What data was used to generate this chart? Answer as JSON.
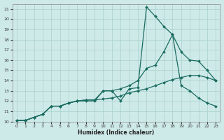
{
  "xlabel": "Humidex (Indice chaleur)",
  "ylabel": "",
  "bg_color": "#ceeae8",
  "grid_color": "#aed4d0",
  "line_color": "#1a6b60",
  "xlim": [
    -0.5,
    23.5
  ],
  "ylim": [
    10,
    21.5
  ],
  "xticks": [
    0,
    1,
    2,
    3,
    4,
    5,
    6,
    7,
    8,
    9,
    10,
    11,
    12,
    13,
    14,
    15,
    16,
    17,
    18,
    19,
    20,
    21,
    22,
    23
  ],
  "yticks": [
    10,
    11,
    12,
    13,
    14,
    15,
    16,
    17,
    18,
    19,
    20,
    21
  ],
  "line1_x": [
    0,
    1,
    2,
    3,
    4,
    5,
    6,
    7,
    8,
    9,
    10,
    11,
    12,
    13,
    14,
    15,
    16,
    17,
    18,
    19,
    20,
    21,
    22,
    23
  ],
  "line1_y": [
    10.1,
    10.1,
    10.4,
    10.7,
    11.5,
    11.5,
    11.8,
    12.0,
    12.1,
    12.1,
    12.2,
    12.3,
    12.5,
    12.8,
    13.0,
    13.2,
    13.5,
    13.8,
    14.1,
    14.3,
    14.5,
    14.5,
    14.3,
    14.0
  ],
  "line2_x": [
    0,
    1,
    2,
    3,
    4,
    5,
    6,
    7,
    8,
    9,
    10,
    11,
    12,
    13,
    14,
    15,
    16,
    17,
    18,
    19,
    20,
    21,
    22,
    23
  ],
  "line2_y": [
    10.1,
    10.1,
    10.4,
    10.7,
    11.5,
    11.5,
    11.8,
    12.0,
    12.1,
    12.1,
    13.0,
    13.0,
    13.2,
    13.5,
    14.0,
    15.2,
    15.5,
    16.8,
    18.5,
    16.8,
    16.0,
    15.9,
    15.0,
    14.0
  ],
  "line3_x": [
    0,
    1,
    2,
    3,
    4,
    5,
    6,
    7,
    8,
    9,
    10,
    11,
    12,
    13,
    14,
    15,
    16,
    17,
    18,
    19,
    20,
    21,
    22,
    23
  ],
  "line3_y": [
    10.1,
    10.1,
    10.4,
    10.7,
    11.5,
    11.5,
    11.8,
    12.0,
    12.0,
    12.0,
    13.0,
    13.0,
    12.0,
    13.2,
    13.3,
    21.2,
    20.3,
    19.3,
    18.5,
    13.5,
    13.0,
    12.3,
    11.8,
    11.5
  ],
  "marker_size": 2,
  "line_width": 0.9
}
